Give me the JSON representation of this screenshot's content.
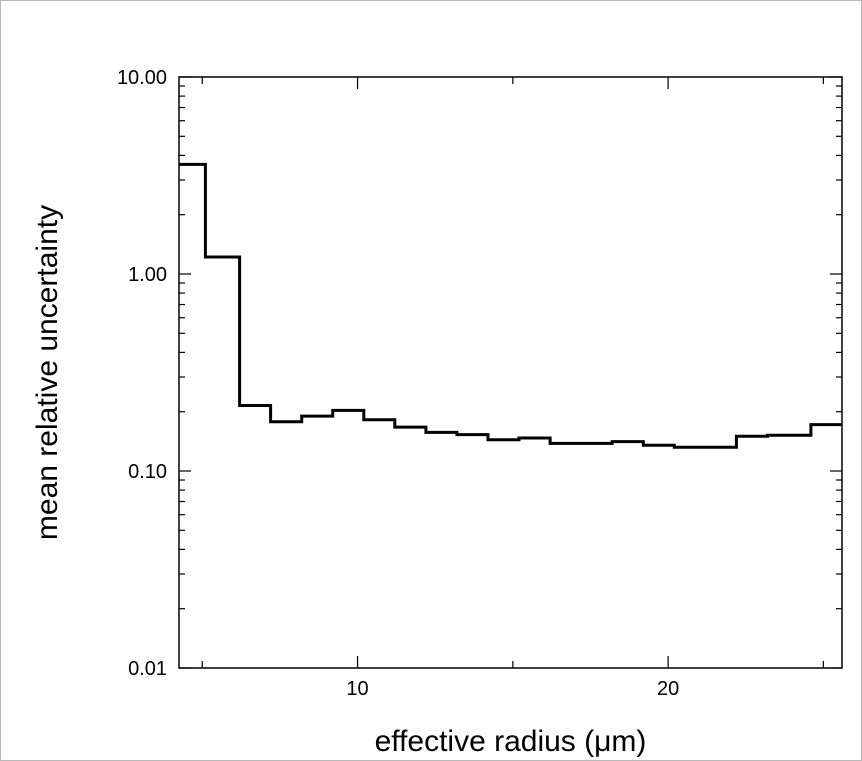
{
  "chart_data": {
    "type": "line",
    "style": "step histogram",
    "xlabel": "effective radius (μm)",
    "ylabel": "mean relative uncertainty",
    "xlim": [
      4.25,
      25.6
    ],
    "ylim": [
      0.01,
      10
    ],
    "yscale": "log",
    "grid": false,
    "x_ticks": [
      {
        "value": 10,
        "label": "10"
      },
      {
        "value": 20,
        "label": "20"
      }
    ],
    "x_minor_ticks": [
      5,
      15,
      25
    ],
    "y_ticks": [
      {
        "value": 10,
        "label": "10.00"
      },
      {
        "value": 1,
        "label": "1.00"
      },
      {
        "value": 0.1,
        "label": "0.10"
      },
      {
        "value": 0.01,
        "label": "0.01"
      }
    ],
    "bins": [
      {
        "x0": 4.25,
        "x1": 5.1,
        "y": 3.6
      },
      {
        "x0": 5.1,
        "x1": 6.2,
        "y": 1.22
      },
      {
        "x0": 6.2,
        "x1": 7.2,
        "y": 0.215
      },
      {
        "x0": 7.2,
        "x1": 8.2,
        "y": 0.178
      },
      {
        "x0": 8.2,
        "x1": 9.2,
        "y": 0.19
      },
      {
        "x0": 9.2,
        "x1": 10.2,
        "y": 0.203
      },
      {
        "x0": 10.2,
        "x1": 11.2,
        "y": 0.182
      },
      {
        "x0": 11.2,
        "x1": 12.2,
        "y": 0.167
      },
      {
        "x0": 12.2,
        "x1": 13.2,
        "y": 0.157
      },
      {
        "x0": 13.2,
        "x1": 14.2,
        "y": 0.153
      },
      {
        "x0": 14.2,
        "x1": 15.2,
        "y": 0.144
      },
      {
        "x0": 15.2,
        "x1": 16.2,
        "y": 0.147
      },
      {
        "x0": 16.2,
        "x1": 17.2,
        "y": 0.138
      },
      {
        "x0": 17.2,
        "x1": 18.2,
        "y": 0.138
      },
      {
        "x0": 18.2,
        "x1": 19.2,
        "y": 0.141
      },
      {
        "x0": 19.2,
        "x1": 20.2,
        "y": 0.135
      },
      {
        "x0": 20.2,
        "x1": 21.2,
        "y": 0.132
      },
      {
        "x0": 21.2,
        "x1": 22.2,
        "y": 0.132
      },
      {
        "x0": 22.2,
        "x1": 23.2,
        "y": 0.15
      },
      {
        "x0": 23.2,
        "x1": 24.6,
        "y": 0.152
      },
      {
        "x0": 24.6,
        "x1": 25.6,
        "y": 0.172
      }
    ],
    "line_color": "#000000"
  }
}
